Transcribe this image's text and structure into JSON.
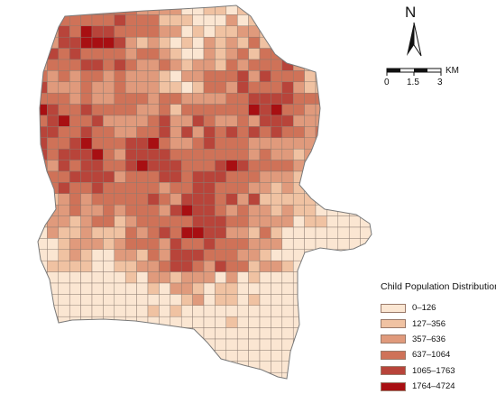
{
  "map": {
    "north_label": "N",
    "scale": {
      "ticks": [
        "0",
        "1.5",
        "3"
      ],
      "unit": "KM"
    }
  },
  "legend": {
    "title": "Child Population Distribution",
    "classes": [
      {
        "label": "0–126",
        "color": "#fbe6d2"
      },
      {
        "label": "127–356",
        "color": "#f0c2a2"
      },
      {
        "label": "357–636",
        "color": "#e09a7c"
      },
      {
        "label": "637–1064",
        "color": "#cf7258"
      },
      {
        "label": "1065–1763",
        "color": "#b8443a"
      },
      {
        "label": "1764–4724",
        "color": "#a80f12"
      }
    ]
  }
}
